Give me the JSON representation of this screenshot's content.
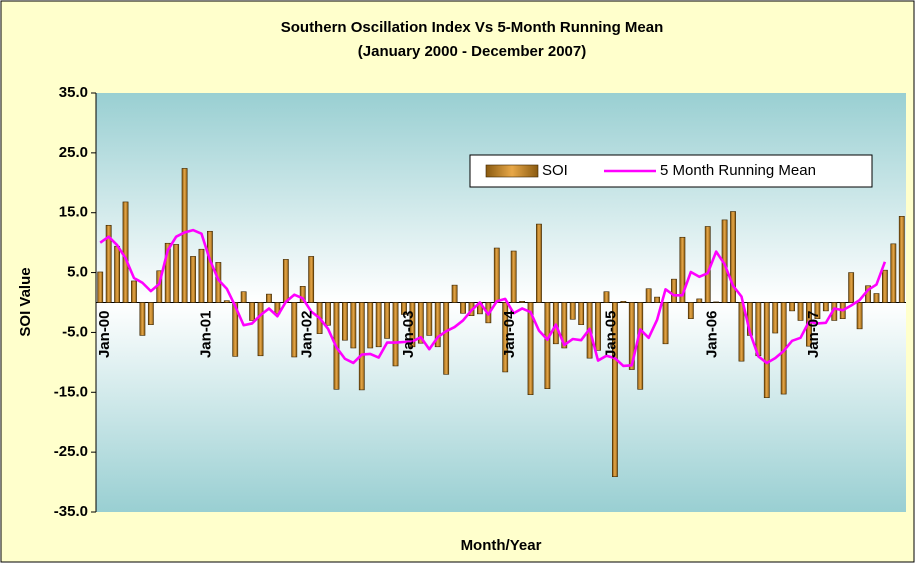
{
  "chart_data": {
    "type": "bar-line",
    "title": "Southern Oscillation Index Vs 5-Month Running Mean",
    "subtitle": "(January 2000 - December 2007)",
    "x_label": "Month/Year",
    "y_label": "SOI Value",
    "categories": [
      "Jan-00",
      null,
      null,
      null,
      null,
      null,
      null,
      null,
      null,
      null,
      null,
      null,
      "Jan-01",
      null,
      null,
      null,
      null,
      null,
      null,
      null,
      null,
      null,
      null,
      null,
      "Jan-02",
      null,
      null,
      null,
      null,
      null,
      null,
      null,
      null,
      null,
      null,
      null,
      "Jan-03",
      null,
      null,
      null,
      null,
      null,
      null,
      null,
      null,
      null,
      null,
      null,
      "Jan-04",
      null,
      null,
      null,
      null,
      null,
      null,
      null,
      null,
      null,
      null,
      null,
      "Jan-05",
      null,
      null,
      null,
      null,
      null,
      null,
      null,
      null,
      null,
      null,
      null,
      "Jan-06",
      null,
      null,
      null,
      null,
      null,
      null,
      null,
      null,
      null,
      null,
      null,
      "Jan-07",
      null,
      null,
      null,
      null,
      null,
      null,
      null,
      null,
      null,
      null,
      null
    ],
    "series": [
      {
        "name": "SOI",
        "type": "bar",
        "color": "#c8862a",
        "values": [
          5.1,
          12.9,
          9.4,
          16.8,
          3.6,
          -5.5,
          -3.7,
          5.3,
          9.9,
          9.7,
          22.4,
          7.7,
          8.9,
          11.9,
          6.7,
          0.3,
          -9.0,
          1.8,
          -3.0,
          -8.9,
          1.4,
          -1.9,
          7.2,
          -9.1,
          2.7,
          7.7,
          -5.2,
          -3.8,
          -14.5,
          -6.3,
          -7.6,
          -14.6,
          -7.6,
          -7.4,
          -6.0,
          -10.6,
          -2.0,
          -7.4,
          -6.8,
          -5.5,
          -7.4,
          -12.0,
          2.9,
          -1.8,
          -2.2,
          -1.9,
          -3.4,
          9.1,
          -11.6,
          8.6,
          0.2,
          -15.4,
          13.1,
          -14.4,
          -6.9,
          -7.6,
          -2.8,
          -3.7,
          -9.3,
          -8.0,
          1.8,
          -29.1,
          0.2,
          -11.2,
          -14.5,
          2.3,
          0.9,
          -6.9,
          3.9,
          10.9,
          -2.7,
          0.6,
          12.7,
          0.1,
          13.8,
          15.2,
          -9.8,
          -5.5,
          -8.9,
          -15.9,
          -5.1,
          -15.3,
          -1.4,
          -3.0,
          -7.3,
          -2.7,
          -1.4,
          -3.0,
          -2.7,
          5.0,
          -4.4,
          2.8,
          1.5,
          5.4,
          9.8,
          14.4
        ]
      },
      {
        "name": "5 Month Running Mean",
        "type": "line",
        "color": "#ff00ff",
        "values": [
          10.0,
          11.0,
          9.6,
          7.4,
          4.1,
          3.3,
          1.9,
          3.1,
          8.7,
          11.0,
          11.7,
          12.1,
          11.5,
          7.1,
          3.8,
          2.3,
          -0.6,
          -3.8,
          -3.5,
          -2.1,
          -1.0,
          -2.3,
          0.1,
          1.3,
          0.7,
          -1.5,
          -2.6,
          -4.4,
          -7.5,
          -9.4,
          -10.1,
          -8.7,
          -8.6,
          -9.2,
          -6.7,
          -6.7,
          -6.6,
          -6.5,
          -5.8,
          -7.8,
          -5.8,
          -4.8,
          -4.1,
          -3.0,
          -1.3,
          0.0,
          -2.0,
          0.2,
          0.6,
          -1.8,
          -1.0,
          -1.6,
          -4.7,
          -6.2,
          -3.7,
          -7.1,
          -6.1,
          -6.3,
          -4.4,
          -9.7,
          -8.9,
          -9.3,
          -10.6,
          -10.5,
          -4.5,
          -5.9,
          -2.9,
          2.2,
          1.2,
          1.2,
          5.1,
          4.3,
          4.9,
          8.5,
          6.4,
          2.8,
          1.0,
          -5.0,
          -9.0,
          -10.1,
          -9.3,
          -8.1,
          -6.4,
          -5.9,
          -3.2,
          -3.5,
          -3.4,
          -1.0,
          -1.3,
          -0.5,
          0.4,
          2.1,
          3.0,
          6.8,
          null,
          null
        ]
      }
    ],
    "ylim": [
      -35,
      35
    ],
    "yticks": [
      {
        "value": -35,
        "label": "-35.0"
      },
      {
        "value": -25,
        "label": "-25.0"
      },
      {
        "value": -15,
        "label": "-15.0"
      },
      {
        "value": -5,
        "label": "-5.0"
      },
      {
        "value": 5,
        "label": "5.0"
      },
      {
        "value": 15,
        "label": "15.0"
      },
      {
        "value": 25,
        "label": "25.0"
      },
      {
        "value": 35,
        "label": "35.0"
      }
    ],
    "legend": "upper right"
  }
}
